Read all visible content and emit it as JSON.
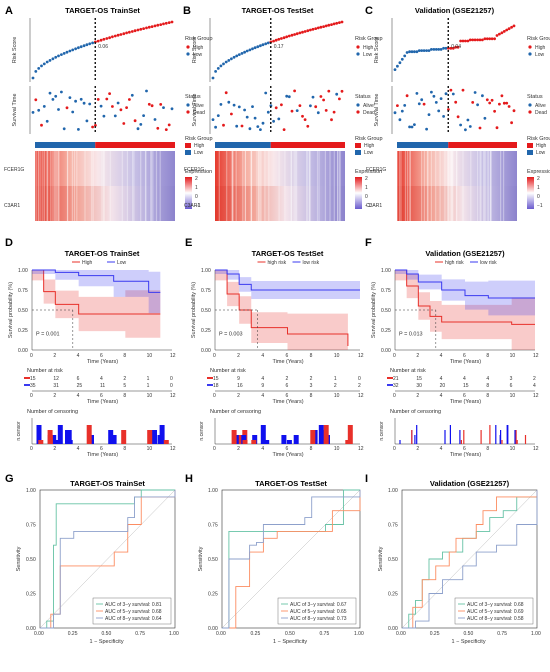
{
  "panels": {
    "A": {
      "label": "A",
      "title": "TARGET-OS TrainSet",
      "cutoff": "0.06"
    },
    "B": {
      "label": "B",
      "title": "TARGET-OS TestSet",
      "cutoff": "0.17"
    },
    "C": {
      "label": "C",
      "title": "Validation (GSE21257)",
      "cutoff": "0.04"
    },
    "D": {
      "label": "D",
      "title": "TARGET-OS TrainSet",
      "pvalue": "P = 0.001",
      "legend": [
        "High",
        "Low"
      ],
      "atrisk_high": [
        "15",
        "12",
        "6",
        "4",
        "2",
        "1",
        "0"
      ],
      "atrisk_low": [
        "35",
        "31",
        "25",
        "11",
        "5",
        "1",
        "0"
      ]
    },
    "E": {
      "label": "E",
      "title": "TARGET-OS TestSet",
      "pvalue": "P = 0.003",
      "legend": [
        "high risk",
        "low risk"
      ],
      "atrisk_high": [
        "15",
        "9",
        "4",
        "2",
        "2",
        "1",
        "0"
      ],
      "atrisk_low": [
        "18",
        "16",
        "9",
        "6",
        "3",
        "2",
        "2"
      ]
    },
    "F": {
      "label": "F",
      "title": "Validation (GSE21257)",
      "pvalue": "P = 0.013",
      "legend": [
        "high risk",
        "low risk"
      ],
      "atrisk_high": [
        "21",
        "15",
        "4",
        "4",
        "4",
        "3",
        "2"
      ],
      "atrisk_low": [
        "32",
        "30",
        "20",
        "15",
        "8",
        "6",
        "4"
      ]
    },
    "G": {
      "label": "G",
      "title": "TARGET-OS TrainSet",
      "auc": [
        "AUC of 3−y survival: 0.81",
        "AUC of 5−y survival: 0.68",
        "AUC of 8−y survival: 0.64"
      ]
    },
    "H": {
      "label": "H",
      "title": "TARGET-OS TestSet",
      "auc": [
        "AUC of 3−y survival: 0.67",
        "AUC of 5−y survival: 0.65",
        "AUC of 8−y survival: 0.73"
      ]
    },
    "I": {
      "label": "I",
      "title": "Validation (GSE21257)",
      "auc": [
        "AUC of 3−y survival: 0.68",
        "AUC of 5−y survival: 0.69",
        "AUC of 8−y survival: 0.58"
      ]
    }
  },
  "labels": {
    "risk_score": "Risk Score",
    "survival_time": "Survival Time",
    "risk_group": "Risk Group",
    "high": "High",
    "low": "Low",
    "status": "Status",
    "alive": "Alive",
    "dead": "Dead",
    "expression": "Expression",
    "gene1": "FCER1G",
    "gene2": "C3AR1",
    "surv_prob": "Survival probability (%)",
    "time_years": "Time (Years)",
    "number_at_risk": "Number at risk",
    "number_censoring": "Number of censoring",
    "n_censor": "n.censor",
    "sensitivity": "Sensitivity",
    "one_minus_spec": "1 − Specificity"
  },
  "colors": {
    "high": "#e41a1c",
    "low": "#2166ac",
    "km_high": "#e8302a",
    "km_low": "#3a3af0",
    "roc3": "#66c2a5",
    "roc5": "#fc8d62",
    "roc8": "#8da0cb"
  },
  "chart_data": [
    {
      "type": "scatter",
      "panel": "A",
      "ylabel": "Risk Score",
      "cutoff": 0.06,
      "note": "ordered risk score curve"
    },
    {
      "type": "scatter",
      "panel": "B",
      "ylabel": "Risk Score",
      "cutoff": 0.17
    },
    {
      "type": "scatter",
      "panel": "C",
      "ylabel": "Risk Score",
      "cutoff": 0.04
    },
    {
      "type": "line",
      "panel": "D",
      "xlabel": "Time (Years)",
      "ylabel": "Survival probability (%)",
      "xlim": [
        0,
        12
      ],
      "ylim": [
        0,
        1
      ],
      "series": [
        {
          "name": "High",
          "x": [
            0,
            1,
            2,
            4,
            8,
            11
          ],
          "y": [
            1,
            0.73,
            0.57,
            0.45,
            0.45,
            0.45
          ]
        },
        {
          "name": "Low",
          "x": [
            0,
            2,
            4,
            7,
            10,
            11
          ],
          "y": [
            1,
            0.97,
            0.93,
            0.86,
            0.72,
            0.72
          ]
        }
      ]
    },
    {
      "type": "line",
      "panel": "E",
      "xlabel": "Time (Years)",
      "ylabel": "Survival probability (%)",
      "xlim": [
        0,
        12
      ],
      "ylim": [
        0,
        1
      ],
      "series": [
        {
          "name": "high risk",
          "x": [
            0,
            1,
            2,
            3,
            6,
            11
          ],
          "y": [
            1,
            0.7,
            0.5,
            0.28,
            0.2,
            0.05
          ]
        },
        {
          "name": "low risk",
          "x": [
            0,
            1,
            2,
            3,
            12
          ],
          "y": [
            1,
            0.95,
            0.82,
            0.75,
            0.75
          ]
        }
      ]
    },
    {
      "type": "line",
      "panel": "F",
      "xlabel": "Time (Years)",
      "ylabel": "Survival probability (%)",
      "xlim": [
        0,
        12
      ],
      "ylim": [
        0,
        1
      ],
      "series": [
        {
          "name": "high risk",
          "x": [
            0,
            1,
            2,
            3,
            4,
            10,
            12
          ],
          "y": [
            1,
            0.8,
            0.55,
            0.42,
            0.35,
            0.32,
            0.32
          ]
        },
        {
          "name": "low risk",
          "x": [
            0,
            1,
            2,
            4,
            6,
            8,
            12
          ],
          "y": [
            1,
            0.95,
            0.85,
            0.75,
            0.68,
            0.65,
            0.65
          ]
        }
      ]
    },
    {
      "type": "line",
      "panel": "G",
      "xlabel": "1 − Specificity",
      "ylabel": "Sensitivity",
      "xlim": [
        0,
        1
      ],
      "ylim": [
        0,
        1
      ],
      "series": [
        {
          "name": "AUC of 3−y survival: 0.81",
          "x": [
            0,
            0.05,
            0.1,
            0.12,
            0.3,
            0.5,
            0.7,
            0.75,
            1
          ],
          "y": [
            0,
            0.05,
            0.6,
            0.9,
            0.9,
            0.9,
            0.95,
            1,
            1
          ]
        },
        {
          "name": "AUC of 5−y survival: 0.68",
          "x": [
            0,
            0.08,
            0.15,
            0.3,
            0.55,
            0.65,
            0.75,
            1
          ],
          "y": [
            0,
            0.1,
            0.45,
            0.45,
            0.55,
            0.75,
            0.95,
            1
          ]
        },
        {
          "name": "AUC of 8−y survival: 0.64",
          "x": [
            0,
            0.1,
            0.15,
            0.25,
            0.6,
            0.65,
            0.7,
            1
          ],
          "y": [
            0,
            0.1,
            0.65,
            0.7,
            0.7,
            0.8,
            0.95,
            1
          ]
        }
      ]
    },
    {
      "type": "line",
      "panel": "H",
      "xlabel": "1 − Specificity",
      "ylabel": "Sensitivity",
      "xlim": [
        0,
        1
      ],
      "ylim": [
        0,
        1
      ],
      "series": [
        {
          "name": "AUC of 3−y survival: 0.67",
          "x": [
            0,
            0.05,
            0.25,
            0.55,
            0.75,
            0.85,
            0.88,
            1
          ],
          "y": [
            0,
            0.7,
            0.7,
            0.7,
            0.75,
            0.75,
            1,
            1
          ]
        },
        {
          "name": "AUC of 5−y survival: 0.65",
          "x": [
            0,
            0.1,
            0.2,
            0.3,
            0.4,
            0.7,
            0.8,
            1
          ],
          "y": [
            0,
            0.3,
            0.55,
            0.65,
            0.7,
            0.7,
            0.85,
            1
          ]
        },
        {
          "name": "AUC of 8−y survival: 0.73",
          "x": [
            0,
            0.05,
            0.2,
            0.25,
            0.3,
            0.6,
            0.65,
            1
          ],
          "y": [
            0,
            0.5,
            0.6,
            0.62,
            0.75,
            0.8,
            0.95,
            1
          ]
        }
      ]
    },
    {
      "type": "line",
      "panel": "I",
      "xlabel": "1 − Specificity",
      "ylabel": "Sensitivity",
      "xlim": [
        0,
        1
      ],
      "ylim": [
        0,
        1
      ],
      "series": [
        {
          "name": "AUC of 3−y survival: 0.68",
          "x": [
            0,
            0.05,
            0.1,
            0.15,
            0.2,
            0.3,
            0.45,
            0.55,
            0.65,
            0.75,
            0.85,
            1
          ],
          "y": [
            0,
            0.1,
            0.2,
            0.35,
            0.5,
            0.55,
            0.65,
            0.7,
            0.8,
            0.85,
            0.95,
            1
          ]
        },
        {
          "name": "AUC of 5−y survival: 0.69",
          "x": [
            0,
            0.08,
            0.15,
            0.25,
            0.35,
            0.4,
            0.55,
            0.6,
            0.7,
            1
          ],
          "y": [
            0,
            0.15,
            0.35,
            0.45,
            0.55,
            0.65,
            0.75,
            0.85,
            0.95,
            1
          ]
        },
        {
          "name": "AUC of 8−y survival: 0.58",
          "x": [
            0,
            0.1,
            0.2,
            0.3,
            0.45,
            0.55,
            0.7,
            0.85,
            1
          ],
          "y": [
            0,
            0.05,
            0.25,
            0.35,
            0.45,
            0.55,
            0.6,
            0.75,
            1
          ]
        }
      ]
    }
  ]
}
